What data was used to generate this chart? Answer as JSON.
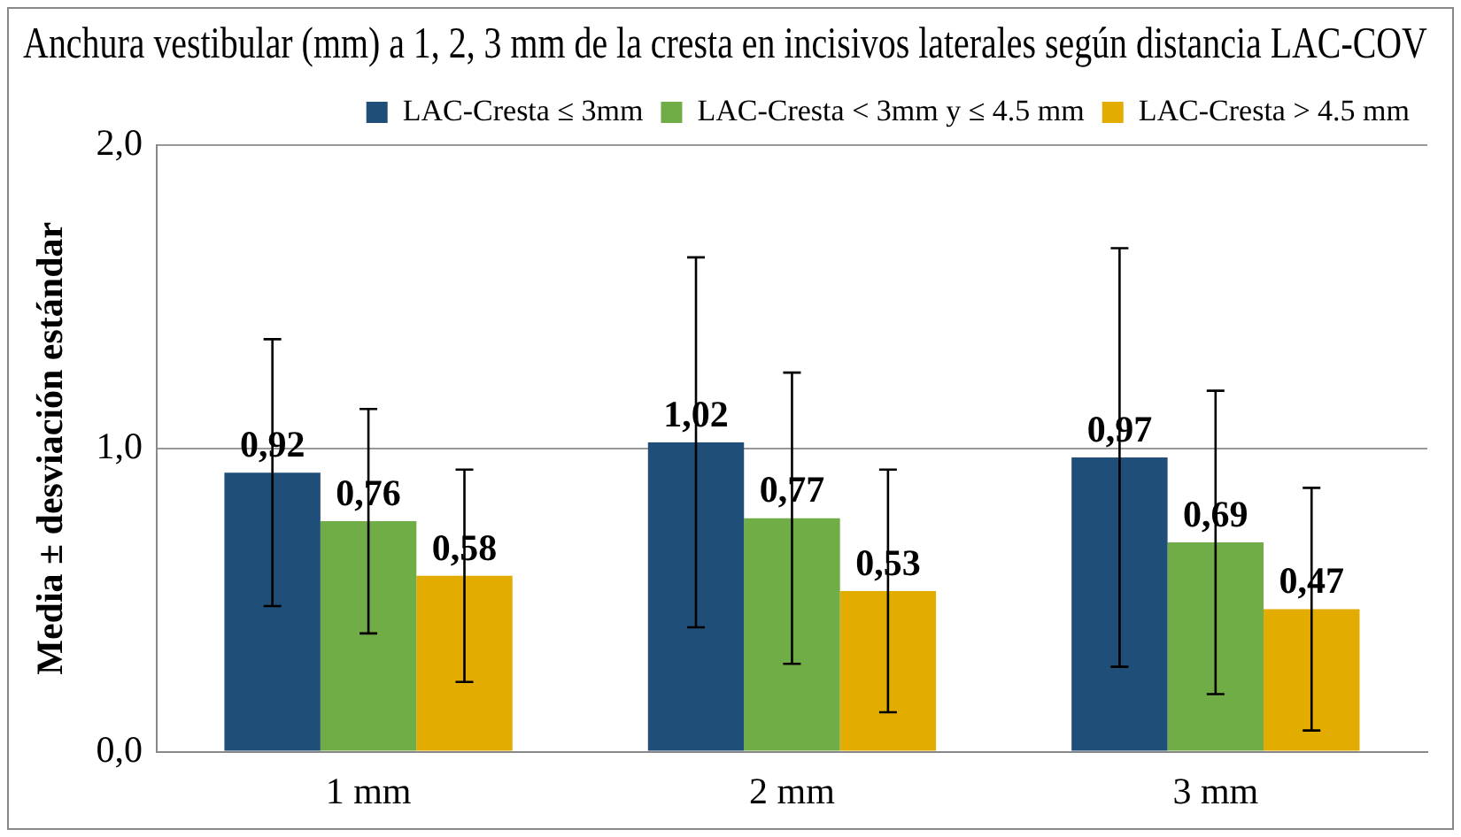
{
  "chart_data": {
    "type": "bar",
    "title": "Anchura vestibular (mm) a 1, 2, 3 mm de la cresta en incisivos laterales según distancia LAC-COV",
    "ylabel": "Media ± desviación estándar",
    "categories": [
      "1 mm",
      "2 mm",
      "3 mm"
    ],
    "series": [
      {
        "name": "LAC-Cresta ≤ 3mm",
        "color": "#1f4e79",
        "values": [
          0.92,
          1.02,
          0.97
        ],
        "errors": [
          0.44,
          0.61,
          0.69
        ],
        "value_labels": [
          "0,92",
          "1,02",
          "0,97"
        ]
      },
      {
        "name": "LAC-Cresta < 3mm y ≤ 4.5 mm",
        "color": "#70ad47",
        "values": [
          0.76,
          0.77,
          0.69
        ],
        "errors": [
          0.37,
          0.48,
          0.5
        ],
        "value_labels": [
          "0,76",
          "0,77",
          "0,69"
        ]
      },
      {
        "name": "LAC-Cresta > 4.5 mm",
        "color": "#e2ac00",
        "values": [
          0.58,
          0.53,
          0.47
        ],
        "errors": [
          0.35,
          0.4,
          0.4
        ],
        "value_labels": [
          "0,58",
          "0,53",
          "0,47"
        ]
      }
    ],
    "ylim": [
      0,
      2
    ],
    "yticks": [
      {
        "value": 0,
        "label": "0,0"
      },
      {
        "value": 1,
        "label": "1,0"
      },
      {
        "value": 2,
        "label": "2,0"
      }
    ],
    "grid": "y",
    "legend": "top"
  }
}
